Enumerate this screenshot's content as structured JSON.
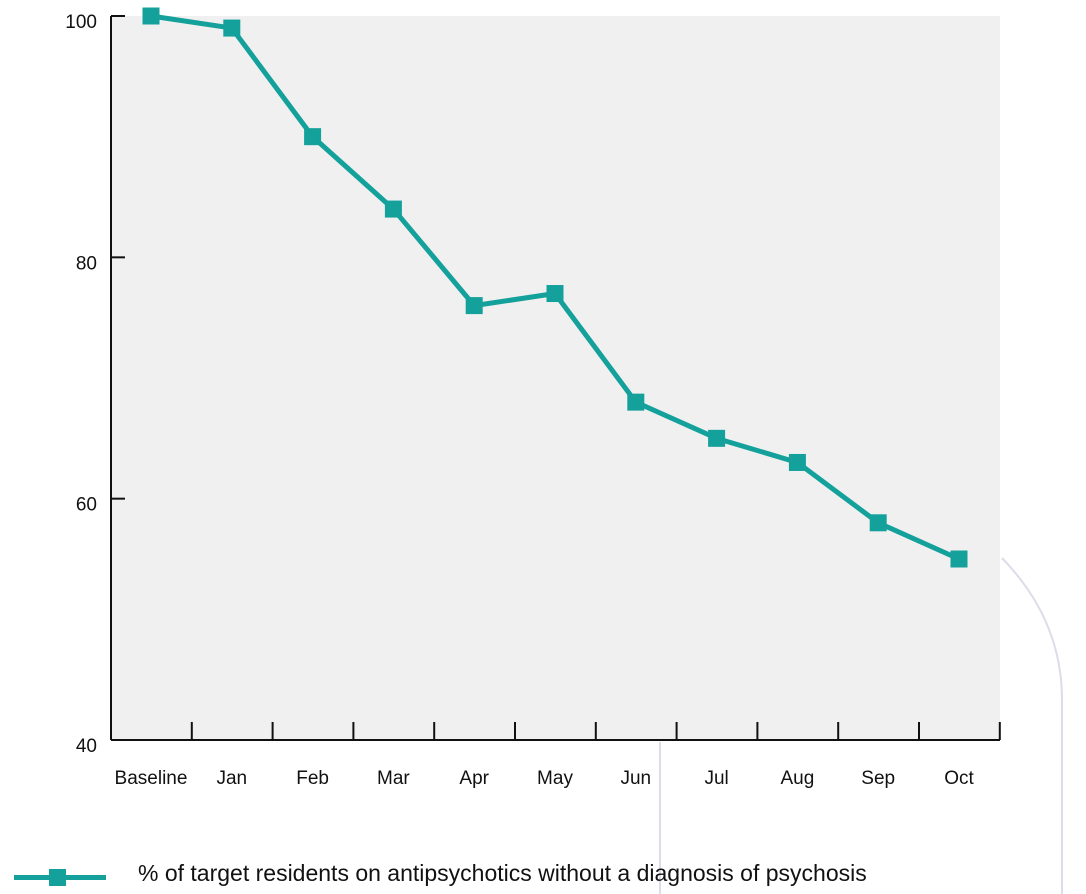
{
  "chart_data": {
    "type": "line",
    "categories": [
      "Baseline",
      "Jan",
      "Feb",
      "Mar",
      "Apr",
      "May",
      "Jun",
      "Jul",
      "Aug",
      "Sep",
      "Oct"
    ],
    "series": [
      {
        "name": "% of target residents on antipsychotics without a diagnosis of psychosis",
        "values": [
          100,
          99,
          90,
          84,
          76,
          77,
          68,
          65,
          63,
          58,
          55
        ],
        "color": "#14a19b",
        "marker": "square"
      }
    ],
    "yticks": [
      40,
      60,
      80,
      100
    ],
    "ylim": [
      40,
      100
    ],
    "grid": false,
    "plot_background": "#f0f0f0",
    "legend_position": "bottom"
  }
}
